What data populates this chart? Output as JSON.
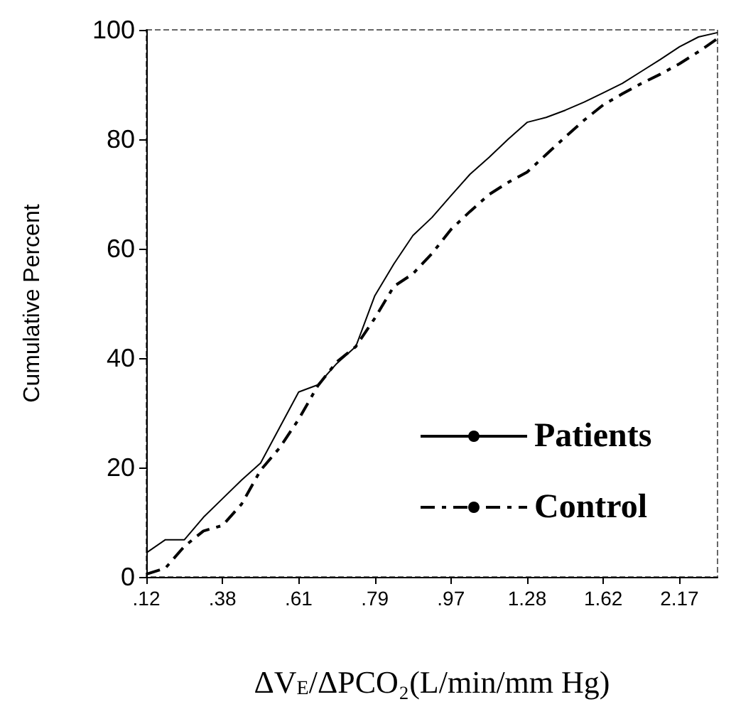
{
  "chart_data": {
    "type": "line",
    "xlabel": "ΔV$_{E}$/ΔPCO₂(L/min/mm Hg)",
    "ylabel": "Cumulative Percent",
    "categories": [
      ".12",
      null,
      null,
      null,
      ".38",
      null,
      null,
      null,
      ".61",
      null,
      null,
      null,
      ".79",
      null,
      null,
      null,
      ".97",
      null,
      null,
      null,
      "1.28",
      null,
      null,
      null,
      "1.62",
      null,
      null,
      null,
      "2.17",
      null,
      null
    ],
    "ylim": [
      0,
      100
    ],
    "yticks": [
      0,
      20,
      40,
      60,
      80,
      100
    ],
    "legend": "bottom right",
    "marker": "none",
    "grid": false,
    "series": [
      {
        "name": "Patients",
        "color": "#000000",
        "line_style": "solid",
        "values": [
          4.4,
          6.8,
          6.8,
          10.9,
          14.3,
          17.7,
          20.8,
          27.3,
          33.8,
          35.1,
          39.0,
          42.1,
          51.4,
          57.2,
          62.4,
          65.7,
          69.7,
          73.6,
          76.7,
          80.0,
          83.1,
          84.0,
          85.3,
          86.8,
          88.5,
          90.2,
          92.4,
          94.6,
          96.9,
          98.7,
          99.5
        ]
      },
      {
        "name": "Control",
        "color": "#000000",
        "line_style": "dashed",
        "values": [
          0.5,
          1.6,
          5.6,
          8.4,
          9.4,
          13.3,
          19.5,
          23.6,
          28.8,
          34.9,
          39.3,
          42.1,
          47.3,
          53.1,
          55.4,
          59.1,
          63.5,
          66.8,
          69.9,
          72.1,
          74.0,
          77.2,
          80.4,
          83.5,
          86.3,
          88.3,
          90.2,
          91.9,
          93.8,
          96.0,
          98.4
        ]
      }
    ]
  }
}
